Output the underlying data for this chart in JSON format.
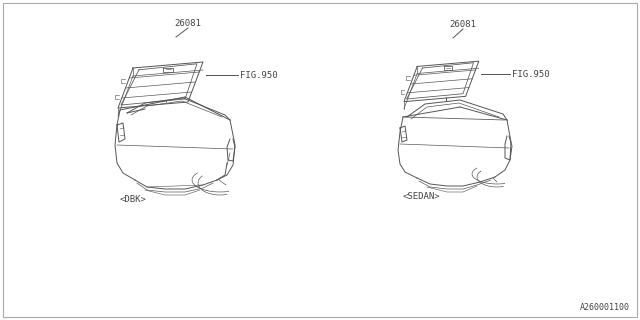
{
  "background_color": "#ffffff",
  "border_color": "#aaaaaa",
  "line_color": "#555555",
  "text_color": "#444444",
  "part_number": "26081",
  "fig_ref": "FIG.950",
  "label_left": "<DBK>",
  "label_right": "<SEDAN>",
  "doc_number": "A260001100",
  "font_size_label": 6.5,
  "font_size_part": 6.5,
  "font_size_fig": 6.5,
  "font_size_doc": 6.0,
  "lw_main": 0.7,
  "lw_thin": 0.5
}
